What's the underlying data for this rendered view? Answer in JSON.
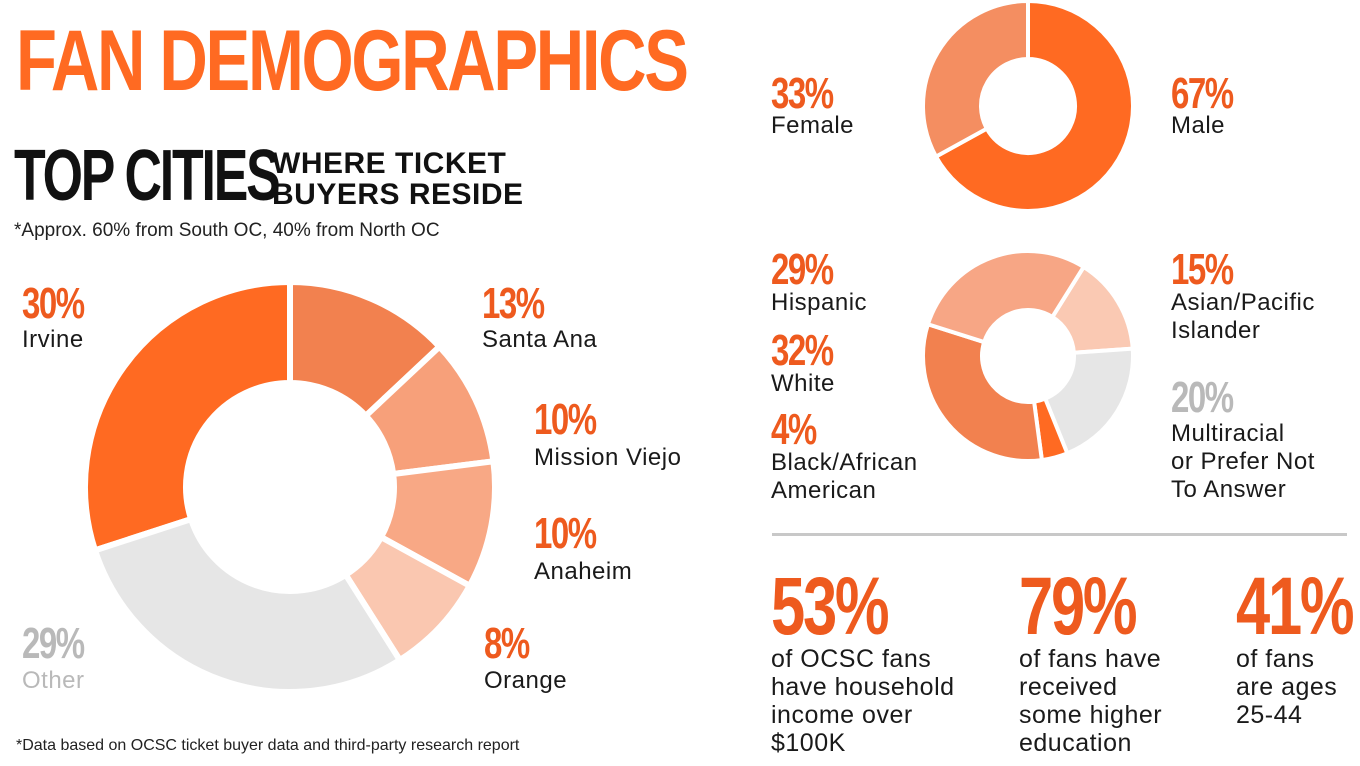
{
  "header": {
    "title": "FAN DEMOGRAPHICS",
    "subtitle_big": "TOP CITIES",
    "subtitle_small": "WHERE TICKET\nBUYERS RESIDE",
    "note": "*Approx. 60% from South OC, 40% from North OC",
    "footnote": "*Data based on OCSC ticket buyer data and third-party research report"
  },
  "colors": {
    "orange": "#ff6a22",
    "orange_text": "#ee5a1e",
    "gray": "#e6e6e6",
    "gray_text": "#b9b9b9"
  },
  "chart_data": [
    {
      "type": "pie",
      "name": "Top cities",
      "labels": [
        "Irvine",
        "Santa Ana",
        "Mission Viejo",
        "Anaheim",
        "Orange",
        "Other"
      ],
      "values": [
        30,
        13,
        10,
        10,
        8,
        29
      ],
      "value_labels": [
        "30%",
        "13%",
        "10%",
        "10%",
        "8%",
        "29%"
      ],
      "colors": [
        "#ff6a22",
        "#f2814f",
        "#f7a07a",
        "#f8a885",
        "#fac7b0",
        "#e6e6e6"
      ]
    },
    {
      "type": "pie",
      "name": "Gender",
      "labels": [
        "Male",
        "Female"
      ],
      "values": [
        67,
        33
      ],
      "value_labels": [
        "67%",
        "33%"
      ],
      "colors": [
        "#ff6a22",
        "#f48e61"
      ]
    },
    {
      "type": "pie",
      "name": "Ethnicity",
      "labels": [
        "Asian/Pacific\nIslander",
        "Multiracial\nor Prefer Not\nTo Answer",
        "Black/African\nAmerican",
        "White",
        "Hispanic"
      ],
      "values": [
        15,
        20,
        4,
        32,
        29
      ],
      "value_labels": [
        "15%",
        "20%",
        "4%",
        "32%",
        "29%"
      ],
      "colors": [
        "#fac9b3",
        "#e6e6e6",
        "#ff6a22",
        "#f2814f",
        "#f7a685"
      ]
    }
  ],
  "stats": [
    {
      "value": "53%",
      "text": "of OCSC fans\nhave household\nincome over\n$100K"
    },
    {
      "value": "79%",
      "text": "of fans have\nreceived\nsome higher\neducation"
    },
    {
      "value": "41%",
      "text": "of fans\nare ages\n25-44"
    }
  ]
}
